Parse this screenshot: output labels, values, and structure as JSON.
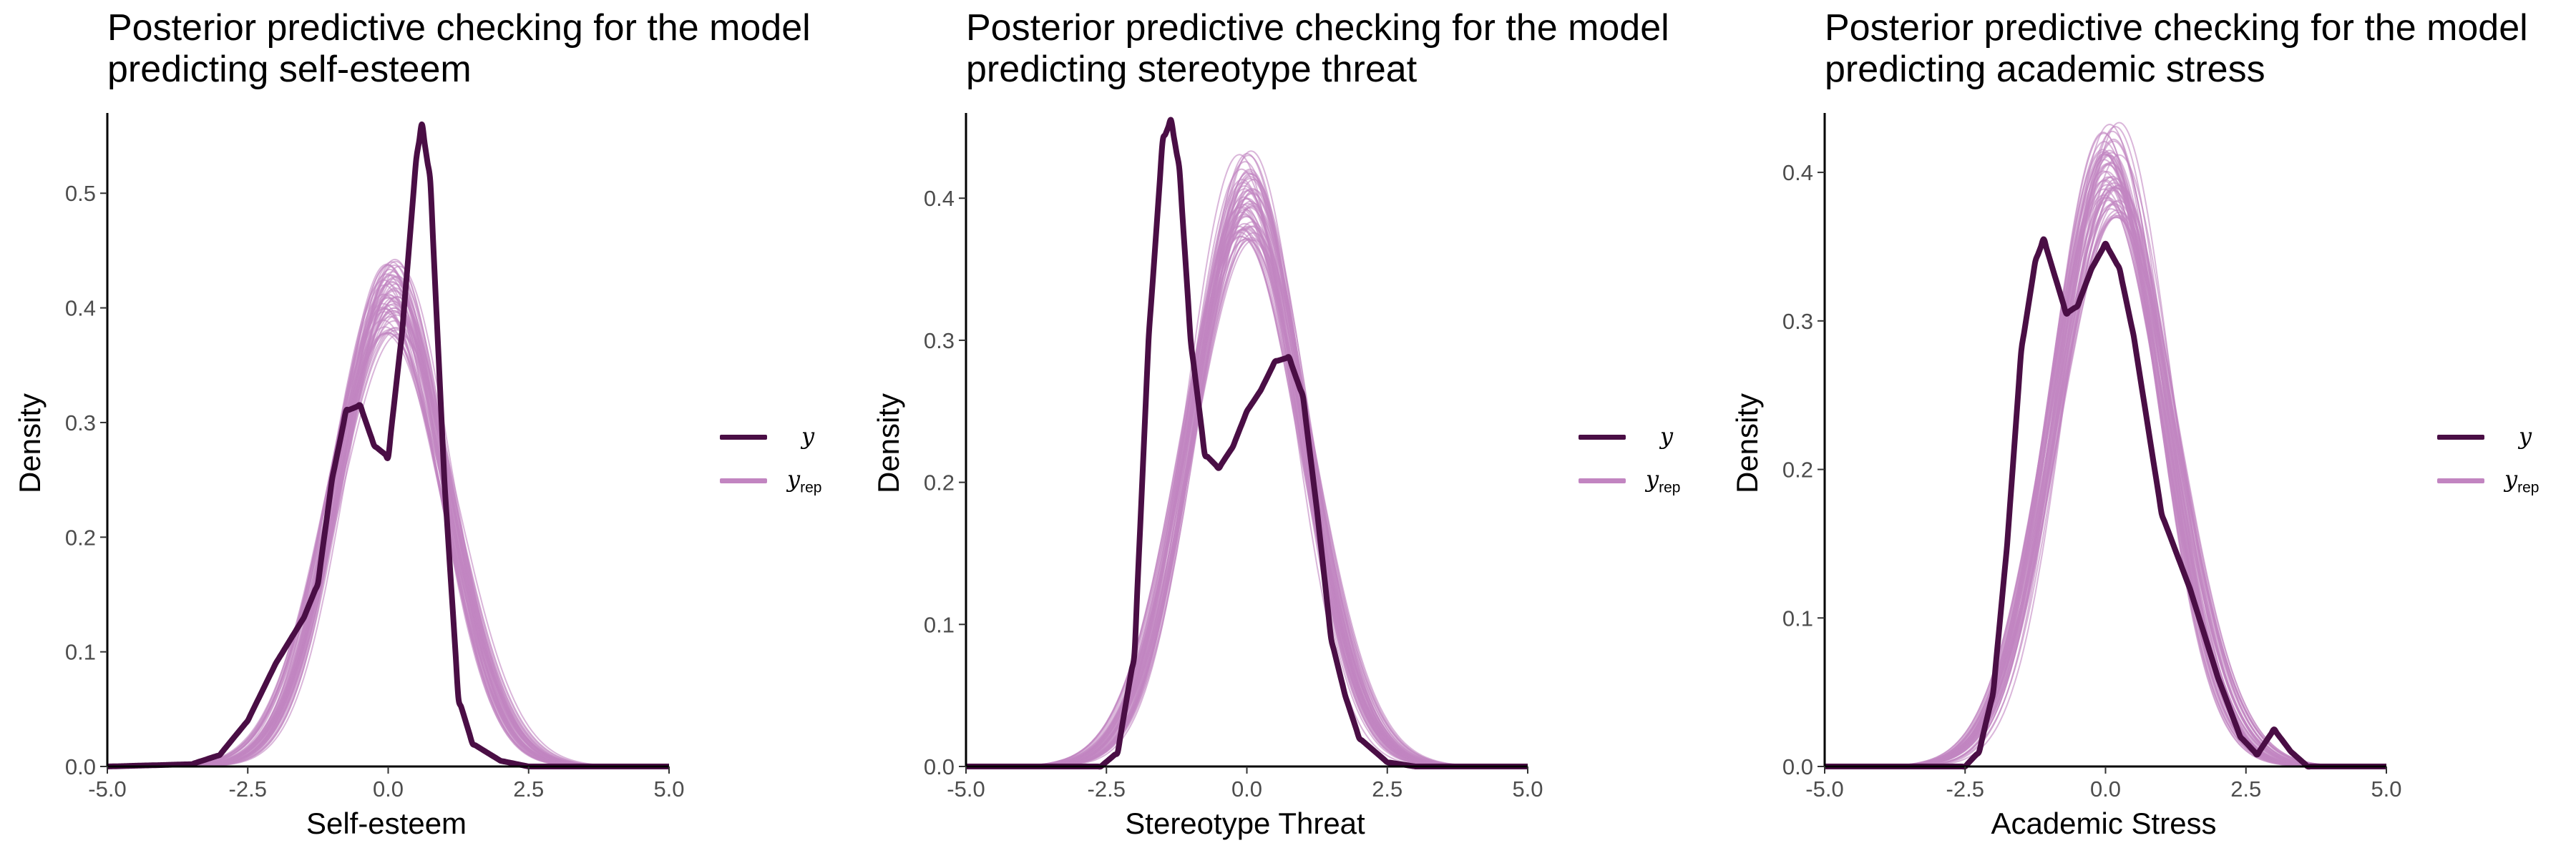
{
  "colors": {
    "observed": "#4a0e45",
    "replicated": "#c285c1",
    "axis": "#000000",
    "tick_text": "#4d4d4d"
  },
  "legend": {
    "y_label": "y",
    "yrep_label": "y",
    "yrep_sub": "rep"
  },
  "chart_data": [
    {
      "type": "line",
      "title": "Posterior predictive checking for the model predicting self-esteem",
      "xlabel": "Self-esteem",
      "ylabel": "Density",
      "xlim": [
        -5,
        5
      ],
      "ylim": [
        0,
        0.57
      ],
      "xticks": [
        "-5.0",
        "-2.5",
        "0.0",
        "2.5",
        "5.0"
      ],
      "yticks": [
        "0.0",
        "0.1",
        "0.2",
        "0.3",
        "0.4",
        "0.5"
      ],
      "yrep": {
        "mean": 0.05,
        "sd": 0.98,
        "n_draws": 60,
        "mean_spread": 0.15,
        "sd_spread": 0.08
      },
      "y_observed": {
        "x": [
          -5,
          -3.5,
          -3,
          -2.5,
          -2,
          -1.5,
          -1.25,
          -1,
          -0.75,
          -0.5,
          -0.25,
          0,
          0.25,
          0.5,
          0.6,
          0.75,
          1,
          1.25,
          1.5,
          2,
          2.5,
          3,
          5
        ],
        "y": [
          0,
          0.002,
          0.01,
          0.04,
          0.09,
          0.13,
          0.16,
          0.25,
          0.31,
          0.315,
          0.28,
          0.27,
          0.38,
          0.53,
          0.56,
          0.51,
          0.25,
          0.06,
          0.02,
          0.005,
          0,
          0,
          0
        ]
      },
      "legend_position": "right"
    },
    {
      "type": "line",
      "title": "Posterior predictive checking for the model predicting stereotype threat",
      "xlabel": "Stereotype Threat",
      "ylabel": "Density",
      "xlim": [
        -5,
        5
      ],
      "ylim": [
        0,
        0.46
      ],
      "xticks": [
        "-5.0",
        "-2.5",
        "0.0",
        "2.5",
        "5.0"
      ],
      "yticks": [
        "0.0",
        "0.1",
        "0.2",
        "0.3",
        "0.4"
      ],
      "yrep": {
        "mean": 0.0,
        "sd": 1.0,
        "n_draws": 60,
        "mean_spread": 0.15,
        "sd_spread": 0.08
      },
      "y_observed": {
        "x": [
          -5,
          -2.6,
          -2.3,
          -2,
          -1.75,
          -1.5,
          -1.35,
          -1.2,
          -1,
          -0.75,
          -0.5,
          -0.25,
          0,
          0.25,
          0.5,
          0.75,
          1,
          1.25,
          1.5,
          1.75,
          2,
          2.5,
          3,
          5
        ],
        "y": [
          0,
          0,
          0.01,
          0.08,
          0.3,
          0.44,
          0.455,
          0.42,
          0.3,
          0.22,
          0.21,
          0.225,
          0.25,
          0.265,
          0.285,
          0.288,
          0.26,
          0.18,
          0.09,
          0.05,
          0.02,
          0.003,
          0,
          0
        ]
      },
      "legend_position": "right"
    },
    {
      "type": "line",
      "title": "Posterior predictive checking for the model predicting academic stress",
      "xlabel": "Academic Stress",
      "ylabel": "Density",
      "xlim": [
        -5,
        5
      ],
      "ylim": [
        0,
        0.44
      ],
      "xticks": [
        "-5.0",
        "-2.5",
        "0.0",
        "2.5",
        "5.0"
      ],
      "yticks": [
        "0.0",
        "0.1",
        "0.2",
        "0.3",
        "0.4"
      ],
      "yrep": {
        "mean": 0.1,
        "sd": 1.0,
        "n_draws": 60,
        "mean_spread": 0.15,
        "sd_spread": 0.08
      },
      "y_observed": {
        "x": [
          -5,
          -2.5,
          -2.25,
          -2,
          -1.75,
          -1.5,
          -1.25,
          -1.1,
          -0.9,
          -0.7,
          -0.5,
          -0.25,
          0,
          0.25,
          0.5,
          0.75,
          1,
          1.5,
          2,
          2.4,
          2.7,
          3,
          3.3,
          3.6,
          5
        ],
        "y": [
          0,
          0,
          0.01,
          0.05,
          0.15,
          0.28,
          0.34,
          0.355,
          0.33,
          0.305,
          0.31,
          0.335,
          0.352,
          0.335,
          0.29,
          0.23,
          0.17,
          0.12,
          0.06,
          0.02,
          0.008,
          0.025,
          0.01,
          0,
          0
        ]
      },
      "legend_position": "right"
    }
  ]
}
